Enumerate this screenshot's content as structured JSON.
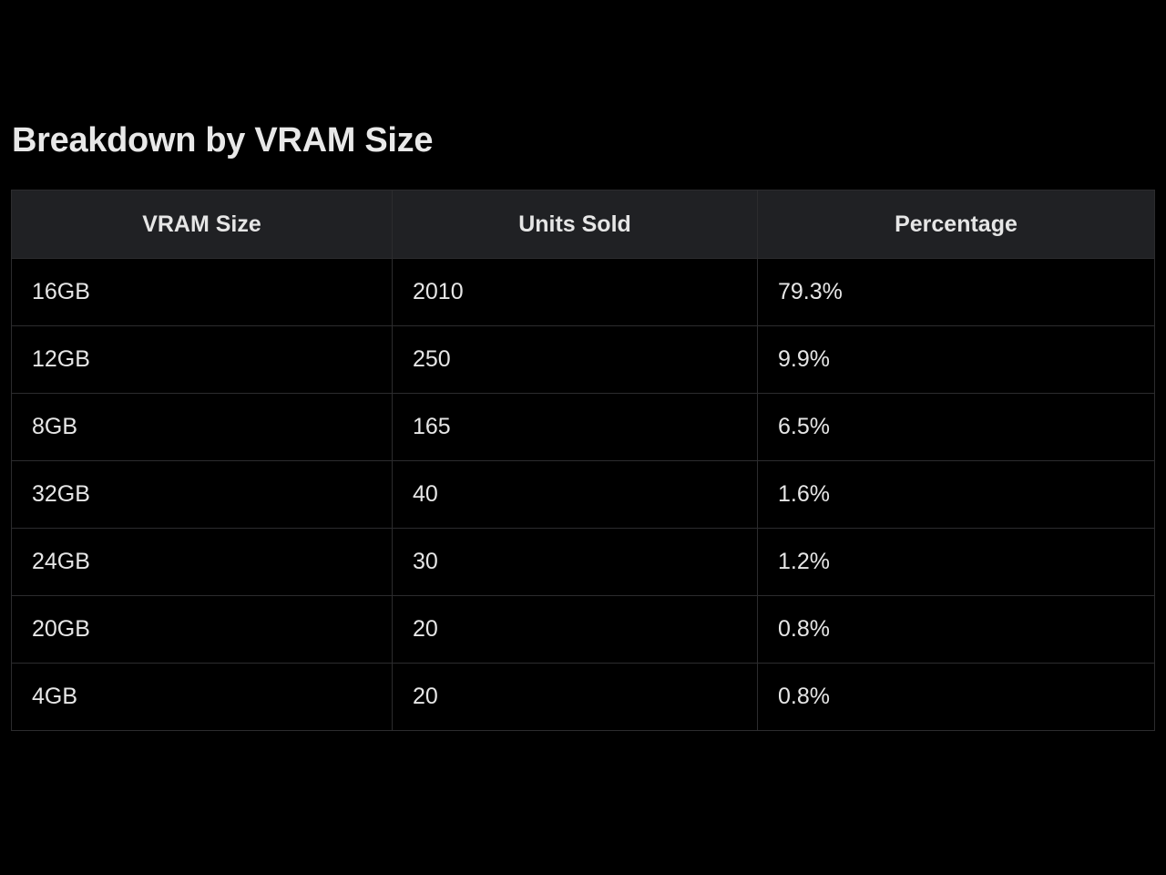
{
  "title": "Breakdown by VRAM Size",
  "table": {
    "headers": [
      "VRAM Size",
      "Units Sold",
      "Percentage"
    ],
    "rows": [
      [
        "16GB",
        "2010",
        "79.3%"
      ],
      [
        "12GB",
        "250",
        "9.9%"
      ],
      [
        "8GB",
        "165",
        "6.5%"
      ],
      [
        "32GB",
        "40",
        "1.6%"
      ],
      [
        "24GB",
        "30",
        "1.2%"
      ],
      [
        "20GB",
        "20",
        "0.8%"
      ],
      [
        "4GB",
        "20",
        "0.8%"
      ]
    ]
  }
}
